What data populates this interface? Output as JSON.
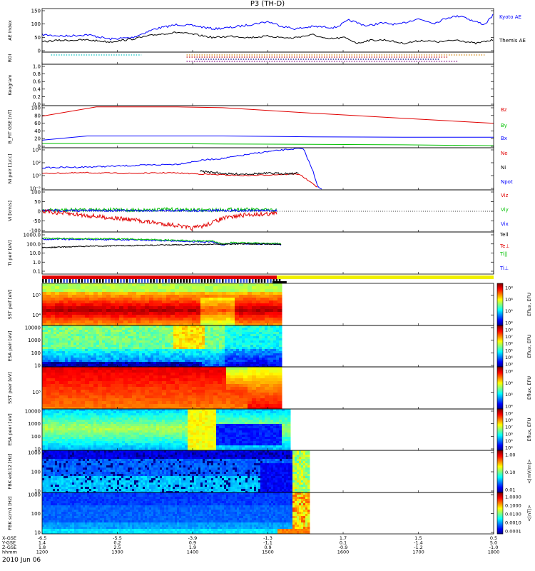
{
  "title": "P3 (TH-D)",
  "date": "2010 Jun 06",
  "chart_data": [
    {
      "type": "line",
      "id": "ae",
      "ylabel": "AE Index",
      "ylim": [
        0,
        150
      ],
      "yticks": [
        "0",
        "50",
        "100",
        "150"
      ],
      "series": [
        {
          "name": "Kyoto AE",
          "color": "#0000ff"
        },
        {
          "name": "Themis AE",
          "color": "#000000"
        }
      ]
    },
    {
      "type": "line",
      "id": "roi",
      "ylabel": "ROI",
      "yticks": []
    },
    {
      "type": "line",
      "id": "keogram",
      "ylabel": "Keogram",
      "ylim": [
        0,
        1
      ],
      "yticks": [
        "0.0",
        "0.2",
        "0.4",
        "0.6",
        "0.8",
        "1.0"
      ]
    },
    {
      "type": "line",
      "id": "bfit",
      "ylabel": "B_FIT GSE [nT]",
      "ylim": [
        0,
        100
      ],
      "yticks": [
        "0",
        "20",
        "40",
        "60",
        "80",
        "100"
      ],
      "series": [
        {
          "name": "Bz",
          "color": "#e00000",
          "values": [
            75,
            97,
            95,
            82,
            70,
            58
          ]
        },
        {
          "name": "By",
          "color": "#00c000",
          "values": [
            10,
            10,
            9,
            8,
            7,
            5
          ]
        },
        {
          "name": "Bx",
          "color": "#0000ff",
          "values": [
            18,
            28,
            28,
            26,
            25,
            25
          ]
        }
      ]
    },
    {
      "type": "line",
      "id": "ni",
      "ylabel": "Ni peir [1/cc]",
      "yticks": [
        "10⁻²",
        "10⁰",
        "10²",
        "10⁴"
      ],
      "series": [
        {
          "name": "Ne",
          "color": "#e00000"
        },
        {
          "name": "Ni",
          "color": "#000000"
        },
        {
          "name": "Npot",
          "color": "#0000ff"
        }
      ]
    },
    {
      "type": "line",
      "id": "vi",
      "ylabel": "Vi [km/s]",
      "yticks": [
        "-100",
        "-50",
        "0",
        "50",
        "100"
      ],
      "series": [
        {
          "name": "Viz",
          "color": "#e00000"
        },
        {
          "name": "Viy",
          "color": "#00c000"
        },
        {
          "name": "Vix",
          "color": "#0000ff"
        }
      ]
    },
    {
      "type": "line",
      "id": "ti",
      "ylabel": "Ti peir [eV]",
      "yticks": [
        "0.1",
        "1.0",
        "10.0",
        "100.0",
        "1000.0"
      ],
      "series": [
        {
          "name": "Tell",
          "color": "#000000"
        },
        {
          "name": "Te⊥",
          "color": "#e00000"
        },
        {
          "name": "Ti||",
          "color": "#00c000"
        },
        {
          "name": "Ti⊥",
          "color": "#0000ff"
        }
      ]
    },
    {
      "type": "heatmap",
      "id": "sst1",
      "ylabel": "SST peif [eV]",
      "yticks": [
        "10⁴",
        "10⁵"
      ],
      "cbar_label": "Eflux, EFU",
      "cbar_ticks": [
        "10⁸",
        "10⁶",
        "10⁵",
        "10⁴"
      ]
    },
    {
      "type": "heatmap",
      "id": "esa1",
      "ylabel": "ESA peir [eV]",
      "yticks": [
        "10",
        "100",
        "1000",
        "10000"
      ],
      "cbar_label": "Eflux, EFU",
      "cbar_ticks": [
        "10⁸",
        "10⁷",
        "10⁶",
        "10⁵",
        "10⁴",
        "10³"
      ]
    },
    {
      "type": "heatmap",
      "id": "sst2",
      "ylabel": "SST peer [eV]",
      "yticks": [
        "10⁵"
      ],
      "cbar_label": "Eflux, EFU",
      "cbar_ticks": [
        "10⁸",
        "10⁶",
        "10⁵",
        "10⁴"
      ]
    },
    {
      "type": "heatmap",
      "id": "esa2",
      "ylabel": "ESA peer [eV]",
      "yticks": [
        "10",
        "100",
        "1000",
        "10000"
      ],
      "cbar_label": "Eflux, EFU",
      "cbar_ticks": [
        "10⁹",
        "10⁸",
        "10⁷",
        "10⁶",
        "10⁵",
        "10⁴"
      ]
    },
    {
      "type": "heatmap",
      "id": "fbk1",
      "ylabel": "FBK edc12 [Hz]",
      "yticks": [
        "10",
        "100",
        "1000"
      ],
      "cbar_label": "<|mV/m|>",
      "cbar_ticks": [
        "1.00",
        "0.10",
        "0.01"
      ]
    },
    {
      "type": "heatmap",
      "id": "fbk2",
      "ylabel": "FBK scm1 [Hz]",
      "yticks": [
        "10",
        "100",
        "1000"
      ],
      "cbar_label": "<|nT|>",
      "cbar_ticks": [
        "1.0000",
        "0.1000",
        "0.0100",
        "0.0010",
        "0.0001"
      ]
    }
  ],
  "x_axis": {
    "rows": [
      {
        "label": "X-GSE",
        "values": [
          "-6.5",
          "-5.5",
          "-3.9",
          "-1.3",
          "1.7",
          "1.5",
          "0.5"
        ]
      },
      {
        "label": "Y-GSE",
        "values": [
          "1.4",
          "0.2",
          "0.9",
          "-1.1",
          "0.1",
          "-1.4",
          "5.0"
        ]
      },
      {
        "label": "Z-GSE",
        "values": [
          "1.8",
          "2.5",
          "1.9",
          "0.9",
          "-0.9",
          "-1.2",
          "-1.0"
        ]
      },
      {
        "label": "hhmm",
        "values": [
          "1200",
          "1300",
          "1400",
          "1500",
          "1600",
          "1700",
          "1800"
        ]
      }
    ]
  }
}
